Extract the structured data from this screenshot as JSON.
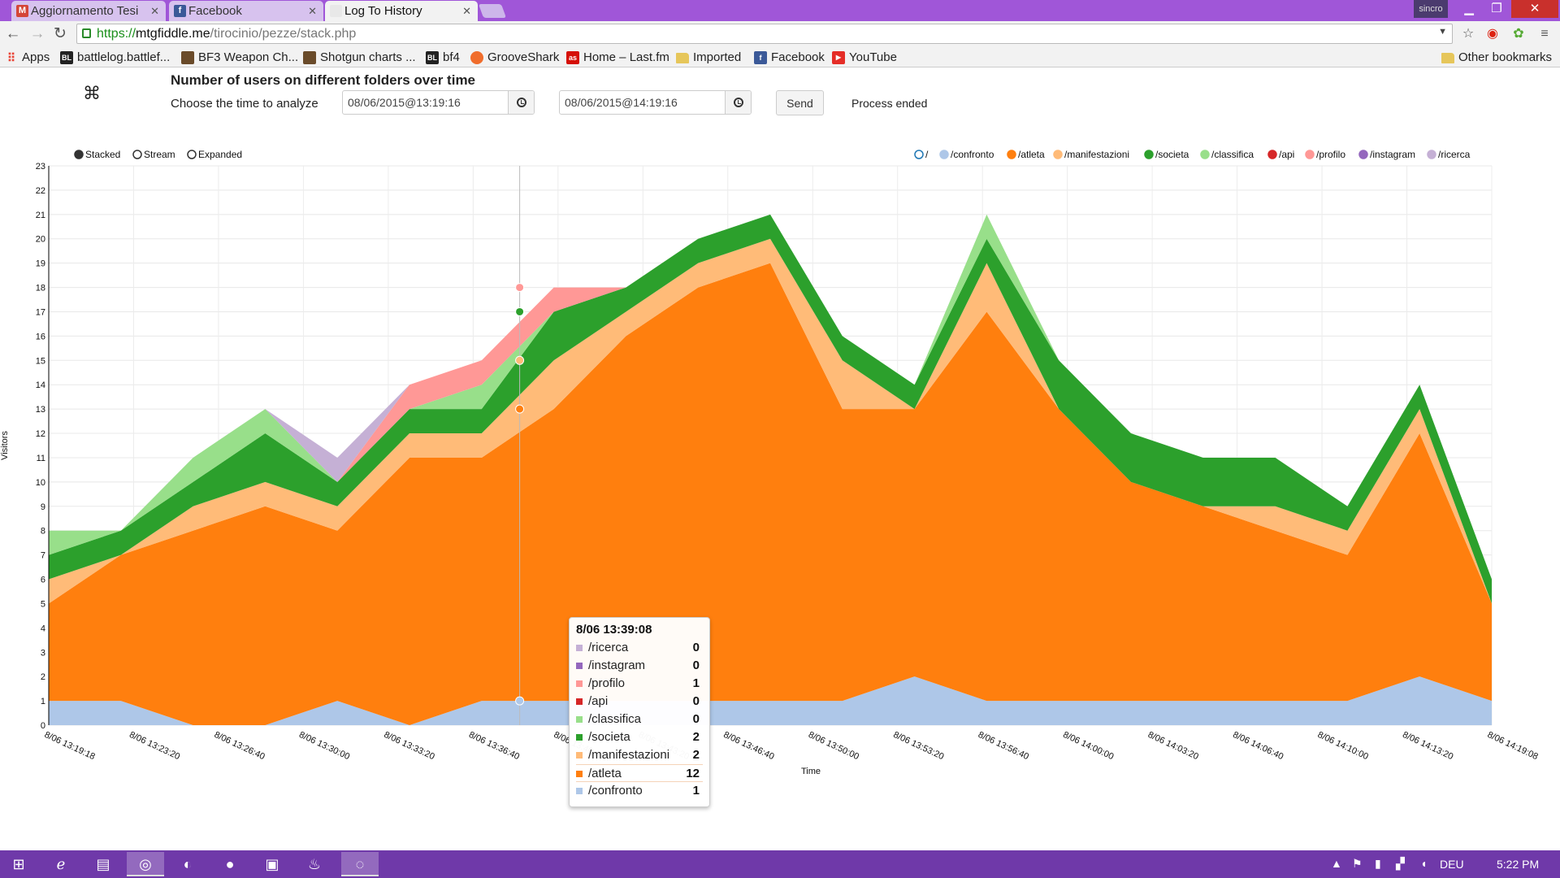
{
  "browser": {
    "tabs": [
      {
        "title": "Aggiornamento Tesi",
        "favicon": "M",
        "color": "#d44638"
      },
      {
        "title": "Facebook",
        "favicon": "f",
        "color": "#3b5998"
      },
      {
        "title": "Log To History",
        "favicon": "",
        "color": "#eee"
      }
    ],
    "user_badge": "sincro",
    "url": {
      "scheme": "https://",
      "host": "mtgfiddle.me",
      "path": "/tirocinio/pezze/stack.php"
    },
    "bookmarks": [
      {
        "label": "Apps",
        "icon": "apps-grid-icon",
        "color": "#e94335"
      },
      {
        "label": "battlelog.battlef...",
        "icon": "BL",
        "color": "#222"
      },
      {
        "label": "BF3 Weapon Ch...",
        "icon": "",
        "color": "#6a4b2a"
      },
      {
        "label": "Shotgun charts ...",
        "icon": "",
        "color": "#6a4b2a"
      },
      {
        "label": "bf4",
        "icon": "BL",
        "color": "#222"
      },
      {
        "label": "GrooveShark",
        "icon": "",
        "color": "#f06d2c"
      },
      {
        "label": "Home – Last.fm",
        "icon": "as",
        "color": "#d51007"
      },
      {
        "label": "Imported",
        "icon": "folder",
        "color": "#e6c65a"
      },
      {
        "label": "Facebook",
        "icon": "f",
        "color": "#3b5998"
      },
      {
        "label": "YouTube",
        "icon": "▶",
        "color": "#e52d27"
      }
    ],
    "other_bookmarks": "Other bookmarks"
  },
  "page": {
    "title": "Number of users on different folders over time",
    "time_label": "Choose the time to analyze",
    "start_value": "08/06/2015@13:19:16",
    "end_value": "08/06/2015@14:19:16",
    "send_label": "Send",
    "status": "Process ended"
  },
  "controls": {
    "modes": [
      {
        "label": "Stacked",
        "selected": true
      },
      {
        "label": "Stream",
        "selected": false
      },
      {
        "label": "Expanded",
        "selected": false
      }
    ]
  },
  "tooltip": {
    "header": "8/06 13:39:08",
    "rows": [
      {
        "key": "/ricerca",
        "value": "0",
        "color": "#c5b0d5"
      },
      {
        "key": "/instagram",
        "value": "0",
        "color": "#9467bd"
      },
      {
        "key": "/profilo",
        "value": "1",
        "color": "#ff9896"
      },
      {
        "key": "/api",
        "value": "0",
        "color": "#d62728"
      },
      {
        "key": "/classifica",
        "value": "0",
        "color": "#98df8a"
      },
      {
        "key": "/societa",
        "value": "2",
        "color": "#2ca02c"
      },
      {
        "key": "/manifestazioni",
        "value": "2",
        "color": "#ffbb78"
      },
      {
        "key": "/atleta",
        "value": "12",
        "color": "#ff7f0e"
      },
      {
        "key": "/confronto",
        "value": "1",
        "color": "#aec7e8"
      }
    ]
  },
  "chart_data": {
    "type": "area",
    "stacked": true,
    "xlabel": "Time",
    "ylabel": "Visitors",
    "ylim": [
      0,
      23
    ],
    "yticks": [
      0,
      1,
      2,
      3,
      4,
      5,
      6,
      7,
      8,
      9,
      10,
      11,
      12,
      13,
      14,
      15,
      16,
      17,
      18,
      19,
      20,
      21,
      22,
      23
    ],
    "xlim": [
      "8/06 13:19:18",
      "8/06 14:19:08"
    ],
    "x_tick_labels": [
      "8/06 13:19:18",
      "8/06 13:23:20",
      "8/06 13:26:40",
      "8/06 13:30:00",
      "8/06 13:33:20",
      "8/06 13:36:40",
      "8/06 13:40:00",
      "8/06 13:43:20",
      "8/06 13:46:40",
      "8/06 13:50:00",
      "8/06 13:53:20",
      "8/06 13:56:40",
      "8/06 14:00:00",
      "8/06 14:03:20",
      "8/06 14:06:40",
      "8/06 14:10:00",
      "8/06 14:13:20",
      "8/06 14:19:08"
    ],
    "x_tick_bold": [
      true,
      false,
      false,
      false,
      false,
      false,
      false,
      false,
      false,
      false,
      false,
      false,
      false,
      false,
      false,
      false,
      false,
      true
    ],
    "legend_position": "top-right",
    "grid": true,
    "hover_time": "8/06 13:39:08",
    "x": [
      "13:19",
      "13:22",
      "13:25",
      "13:28",
      "13:31",
      "13:34",
      "13:37",
      "13:39",
      "13:42",
      "13:45",
      "13:48",
      "13:51",
      "13:54",
      "13:57",
      "14:00",
      "14:03",
      "14:06",
      "14:09",
      "14:12",
      "14:15",
      "14:18"
    ],
    "series": [
      {
        "name": "/",
        "color": "#1f77b4",
        "hollow": true,
        "values": [
          0,
          0,
          0,
          0,
          0,
          0,
          0,
          0,
          0,
          0,
          0,
          0,
          0,
          0,
          0,
          0,
          0,
          0,
          0,
          0,
          0
        ]
      },
      {
        "name": "/confronto",
        "color": "#aec7e8",
        "values": [
          1,
          1,
          0,
          0,
          1,
          0,
          1,
          1,
          1,
          1,
          1,
          1,
          2,
          1,
          1,
          1,
          1,
          1,
          1,
          2,
          1
        ]
      },
      {
        "name": "/atleta",
        "color": "#ff7f0e",
        "values": [
          4,
          6,
          8,
          9,
          7,
          11,
          10,
          12,
          15,
          17,
          18,
          12,
          11,
          16,
          12,
          9,
          8,
          7,
          6,
          10,
          4
        ]
      },
      {
        "name": "/manifestazioni",
        "color": "#ffbb78",
        "values": [
          1,
          0,
          1,
          1,
          1,
          1,
          1,
          2,
          1,
          1,
          1,
          2,
          0,
          2,
          0,
          0,
          0,
          1,
          1,
          1,
          0
        ]
      },
      {
        "name": "/societa",
        "color": "#2ca02c",
        "values": [
          1,
          1,
          1,
          2,
          1,
          1,
          1,
          2,
          1,
          1,
          1,
          1,
          1,
          1,
          2,
          2,
          2,
          2,
          1,
          1,
          1
        ]
      },
      {
        "name": "/classifica",
        "color": "#98df8a",
        "values": [
          1,
          0,
          1,
          1,
          0,
          0,
          1,
          0,
          0,
          0,
          0,
          0,
          0,
          1,
          0,
          0,
          0,
          0,
          0,
          0,
          0
        ]
      },
      {
        "name": "/api",
        "color": "#d62728",
        "values": [
          0,
          0,
          0,
          0,
          0,
          0,
          0,
          0,
          0,
          0,
          0,
          0,
          0,
          0,
          0,
          0,
          0,
          0,
          0,
          0,
          0
        ]
      },
      {
        "name": "/profilo",
        "color": "#ff9896",
        "values": [
          0,
          0,
          0,
          0,
          0,
          1,
          1,
          1,
          0,
          0,
          0,
          0,
          0,
          0,
          0,
          0,
          0,
          0,
          0,
          0,
          0
        ]
      },
      {
        "name": "/instagram",
        "color": "#9467bd",
        "values": [
          0,
          0,
          0,
          0,
          0,
          0,
          0,
          0,
          0,
          0,
          0,
          0,
          0,
          0,
          0,
          0,
          0,
          0,
          0,
          0,
          0
        ]
      },
      {
        "name": "/ricerca",
        "color": "#c5b0d5",
        "values": [
          0,
          0,
          0,
          0,
          1,
          0,
          0,
          0,
          0,
          0,
          0,
          0,
          0,
          0,
          0,
          0,
          0,
          0,
          0,
          0,
          0
        ]
      }
    ]
  },
  "taskbar": {
    "lang": "DEU",
    "time": "5:22 PM"
  }
}
